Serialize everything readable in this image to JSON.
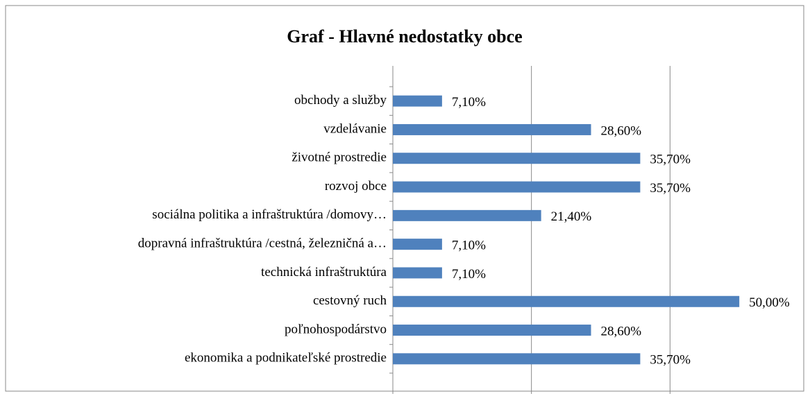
{
  "chart_data": {
    "type": "bar",
    "orientation": "horizontal",
    "title": "Graf - Hlavné nedostatky obce",
    "categories": [
      "obchody a služby",
      "vzdelávanie",
      "životné prostredie",
      "rozvoj obce",
      "sociálna politika a infraštruktúra /domovy…",
      "dopravná infraštruktúra /cestná, železničná a…",
      "technická infraštruktúra",
      "cestovný ruch",
      "poľnohospodárstvo",
      "ekonomika a podnikateľské prostredie"
    ],
    "values": [
      7.1,
      28.6,
      35.7,
      35.7,
      21.4,
      7.1,
      7.1,
      50,
      28.6,
      35.7
    ],
    "value_labels": [
      "7,10%",
      "28,60%",
      "35,70%",
      "35,70%",
      "21,40%",
      "7,10%",
      "7,10%",
      "50,00%",
      "28,60%",
      "35,70%"
    ],
    "color": "#4f81bd",
    "xlim": [
      0,
      60
    ],
    "xticks": [
      0,
      20,
      40
    ],
    "grid": true
  }
}
